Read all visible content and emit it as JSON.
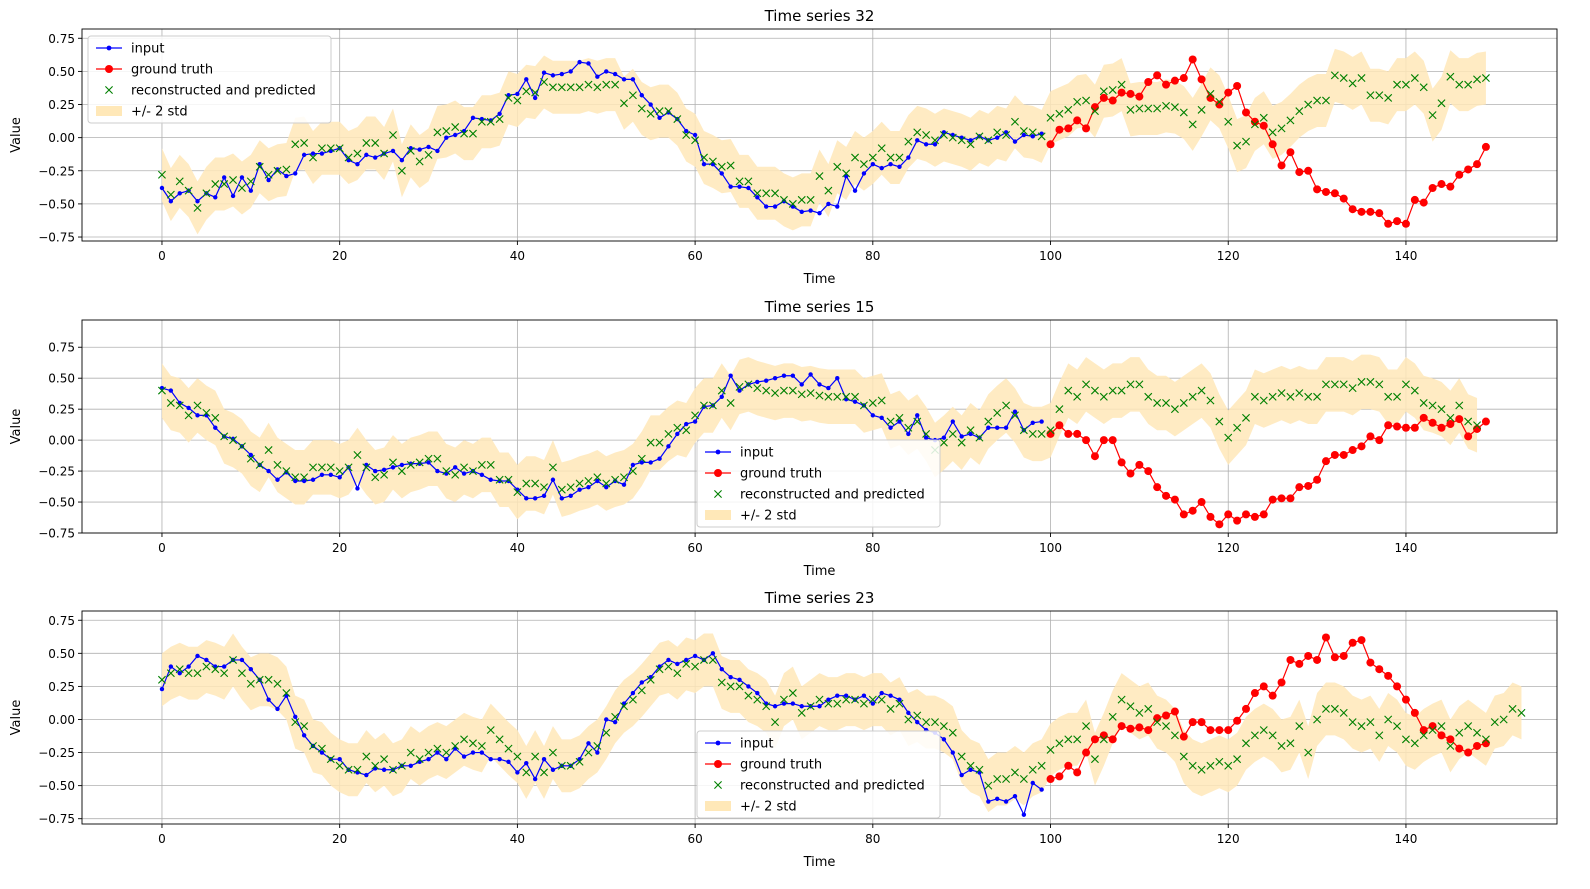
{
  "legend_labels": {
    "input": "input",
    "ground_truth": "ground truth",
    "predicted": "reconstructed and predicted",
    "band": "+/- 2 std"
  },
  "colors": {
    "input": "#0000ff",
    "ground_truth": "#ff0000",
    "predicted": "#008000",
    "band": "#ffe8b8",
    "grid": "#b0b0b0",
    "axes": "#000000"
  },
  "chart_data": [
    {
      "type": "line",
      "title": "Time series 32",
      "xlabel": "Time",
      "ylabel": "Value",
      "xlim": [
        -9,
        157
      ],
      "ylim": [
        -0.78,
        0.82
      ],
      "xticks": [
        0,
        20,
        40,
        60,
        80,
        100,
        120,
        140
      ],
      "yticks": [
        -0.75,
        -0.5,
        -0.25,
        0.0,
        0.25,
        0.5,
        0.75
      ],
      "ytick_labels": [
        "−0.75",
        "−0.50",
        "−0.25",
        "0.00",
        "0.25",
        "0.50",
        "0.75"
      ],
      "grid": true,
      "legend_position": "upper-left",
      "input": {
        "x_start": 0,
        "values": [
          -0.38,
          -0.48,
          -0.42,
          -0.4,
          -0.48,
          -0.42,
          -0.45,
          -0.3,
          -0.44,
          -0.3,
          -0.4,
          -0.2,
          -0.32,
          -0.24,
          -0.29,
          -0.27,
          -0.13,
          -0.12,
          -0.12,
          -0.1,
          -0.08,
          -0.17,
          -0.2,
          -0.13,
          -0.15,
          -0.12,
          -0.1,
          -0.17,
          -0.08,
          -0.09,
          -0.07,
          -0.1,
          0.0,
          0.02,
          0.05,
          0.15,
          0.14,
          0.13,
          0.18,
          0.32,
          0.33,
          0.44,
          0.3,
          0.49,
          0.47,
          0.48,
          0.5,
          0.57,
          0.56,
          0.46,
          0.5,
          0.48,
          0.44,
          0.44,
          0.32,
          0.25,
          0.15,
          0.19,
          0.14,
          0.05,
          0.02,
          -0.2,
          -0.2,
          -0.27,
          -0.37,
          -0.37,
          -0.38,
          -0.45,
          -0.52,
          -0.52,
          -0.48,
          -0.52,
          -0.56,
          -0.55,
          -0.57,
          -0.5,
          -0.52,
          -0.29,
          -0.4,
          -0.27,
          -0.2,
          -0.23,
          -0.2,
          -0.22,
          -0.15,
          -0.02,
          -0.05,
          -0.05,
          0.04,
          0.02,
          0.0,
          -0.02,
          0.01,
          -0.02,
          0.0,
          0.04,
          -0.03,
          0.02,
          0.01,
          0.03
        ]
      },
      "ground_truth": {
        "x_start": 100,
        "values": [
          -0.05,
          0.06,
          0.07,
          0.13,
          0.07,
          0.23,
          0.3,
          0.28,
          0.34,
          0.33,
          0.31,
          0.42,
          0.47,
          0.4,
          0.43,
          0.45,
          0.59,
          0.44,
          0.3,
          0.25,
          0.34,
          0.39,
          0.19,
          0.12,
          0.09,
          -0.05,
          -0.21,
          -0.11,
          -0.26,
          -0.25,
          -0.39,
          -0.41,
          -0.42,
          -0.46,
          -0.54,
          -0.56,
          -0.56,
          -0.57,
          -0.65,
          -0.63,
          -0.65,
          -0.47,
          -0.49,
          -0.38,
          -0.35,
          -0.37,
          -0.28,
          -0.24,
          -0.2,
          -0.07
        ]
      },
      "predicted": {
        "x_start": 0,
        "values": [
          -0.28,
          -0.43,
          -0.33,
          -0.4,
          -0.53,
          -0.42,
          -0.35,
          -0.35,
          -0.32,
          -0.38,
          -0.33,
          -0.22,
          -0.28,
          -0.25,
          -0.24,
          -0.05,
          -0.04,
          -0.15,
          -0.08,
          -0.08,
          -0.08,
          -0.15,
          -0.12,
          -0.04,
          -0.04,
          -0.12,
          0.02,
          -0.25,
          -0.1,
          -0.18,
          -0.13,
          0.04,
          0.05,
          0.08,
          0.03,
          0.03,
          0.12,
          0.12,
          0.14,
          0.3,
          0.28,
          0.35,
          0.34,
          0.42,
          0.38,
          0.38,
          0.38,
          0.38,
          0.4,
          0.38,
          0.4,
          0.4,
          0.26,
          0.32,
          0.22,
          0.18,
          0.2,
          0.2,
          0.14,
          0.02,
          -0.02,
          -0.15,
          -0.18,
          -0.22,
          -0.21,
          -0.33,
          -0.33,
          -0.42,
          -0.42,
          -0.42,
          -0.47,
          -0.5,
          -0.47,
          -0.47,
          -0.29,
          -0.4,
          -0.22,
          -0.27,
          -0.15,
          -0.2,
          -0.15,
          -0.08,
          -0.15,
          -0.15,
          -0.03,
          0.04,
          0.02,
          -0.02,
          0.02,
          0.0,
          -0.02,
          -0.05,
          0.01,
          -0.02,
          0.04,
          0.02,
          0.12,
          0.05,
          0.04,
          0.01,
          0.15,
          0.18,
          0.21,
          0.27,
          0.28,
          0.2,
          0.35,
          0.36,
          0.4,
          0.21,
          0.22,
          0.22,
          0.22,
          0.24,
          0.23,
          0.19,
          0.1,
          0.21,
          0.33,
          0.27,
          0.12,
          -0.06,
          -0.03,
          0.1,
          0.15,
          0.04,
          0.07,
          0.13,
          0.2,
          0.25,
          0.28,
          0.28,
          0.47,
          0.45,
          0.41,
          0.45,
          0.32,
          0.32,
          0.3,
          0.4,
          0.4,
          0.45,
          0.38,
          0.17,
          0.26,
          0.46,
          0.4,
          0.4,
          0.44,
          0.45
        ]
      },
      "band_half_width": 0.2
    },
    {
      "type": "line",
      "title": "Time series 15",
      "xlabel": "Time",
      "ylabel": "Value",
      "xlim": [
        -9,
        157
      ],
      "ylim": [
        -0.75,
        0.97
      ],
      "xticks": [
        0,
        20,
        40,
        60,
        80,
        100,
        120,
        140
      ],
      "yticks": [
        -0.75,
        -0.5,
        -0.25,
        0.0,
        0.25,
        0.5,
        0.75
      ],
      "ytick_labels": [
        "−0.75",
        "−0.50",
        "−0.25",
        "0.00",
        "0.25",
        "0.50",
        "0.75"
      ],
      "grid": true,
      "legend_position": "lower-center",
      "input": {
        "x_start": 0,
        "values": [
          0.42,
          0.4,
          0.3,
          0.26,
          0.2,
          0.2,
          0.1,
          0.03,
          0.01,
          -0.05,
          -0.12,
          -0.2,
          -0.25,
          -0.32,
          -0.26,
          -0.33,
          -0.33,
          -0.32,
          -0.28,
          -0.28,
          -0.3,
          -0.22,
          -0.39,
          -0.2,
          -0.25,
          -0.24,
          -0.22,
          -0.2,
          -0.19,
          -0.19,
          -0.18,
          -0.25,
          -0.27,
          -0.22,
          -0.27,
          -0.25,
          -0.28,
          -0.32,
          -0.33,
          -0.33,
          -0.4,
          -0.47,
          -0.47,
          -0.45,
          -0.32,
          -0.47,
          -0.45,
          -0.4,
          -0.38,
          -0.33,
          -0.38,
          -0.33,
          -0.36,
          -0.2,
          -0.18,
          -0.18,
          -0.15,
          -0.05,
          0.05,
          0.13,
          0.15,
          0.27,
          0.28,
          0.35,
          0.52,
          0.4,
          0.45,
          0.47,
          0.48,
          0.5,
          0.52,
          0.52,
          0.45,
          0.53,
          0.45,
          0.42,
          0.5,
          0.33,
          0.31,
          0.28,
          0.2,
          0.18,
          0.1,
          0.15,
          0.05,
          0.2,
          0.02,
          0.0,
          0.02,
          0.15,
          0.03,
          0.05,
          0.02,
          0.1,
          0.1,
          0.1,
          0.23,
          0.08,
          0.14,
          0.15
        ]
      },
      "ground_truth": {
        "x_start": 100,
        "values": [
          0.05,
          0.12,
          0.05,
          0.05,
          0.0,
          -0.13,
          0.0,
          0.0,
          -0.18,
          -0.27,
          -0.2,
          -0.25,
          -0.38,
          -0.45,
          -0.48,
          -0.6,
          -0.57,
          -0.5,
          -0.62,
          -0.68,
          -0.6,
          -0.65,
          -0.6,
          -0.62,
          -0.6,
          -0.48,
          -0.47,
          -0.47,
          -0.38,
          -0.37,
          -0.32,
          -0.17,
          -0.12,
          -0.12,
          -0.08,
          -0.05,
          0.03,
          0.0,
          0.12,
          0.11,
          0.1,
          0.1,
          0.18,
          0.14,
          0.1,
          0.13,
          0.17,
          0.03,
          0.09,
          0.15
        ]
      },
      "predicted": {
        "x_start": 0,
        "values": [
          0.4,
          0.3,
          0.28,
          0.2,
          0.28,
          0.22,
          0.18,
          0.03,
          0.0,
          -0.05,
          -0.15,
          -0.2,
          -0.08,
          -0.2,
          -0.25,
          -0.3,
          -0.3,
          -0.22,
          -0.22,
          -0.22,
          -0.25,
          -0.22,
          -0.12,
          -0.22,
          -0.3,
          -0.28,
          -0.18,
          -0.25,
          -0.2,
          -0.18,
          -0.15,
          -0.15,
          -0.25,
          -0.28,
          -0.22,
          -0.25,
          -0.2,
          -0.2,
          -0.32,
          -0.32,
          -0.42,
          -0.35,
          -0.35,
          -0.38,
          -0.22,
          -0.4,
          -0.38,
          -0.35,
          -0.33,
          -0.3,
          -0.35,
          -0.32,
          -0.3,
          -0.25,
          -0.15,
          -0.02,
          -0.02,
          0.05,
          0.1,
          0.08,
          0.2,
          0.28,
          0.28,
          0.4,
          0.3,
          0.43,
          0.45,
          0.42,
          0.4,
          0.38,
          0.4,
          0.4,
          0.37,
          0.38,
          0.36,
          0.35,
          0.35,
          0.35,
          0.35,
          0.28,
          0.3,
          0.32,
          0.15,
          0.18,
          0.1,
          0.15,
          0.05,
          -0.08,
          -0.02,
          0.05,
          -0.02,
          0.08,
          0.02,
          0.15,
          0.22,
          0.28,
          0.2,
          0.08,
          0.05,
          0.05,
          0.08,
          0.25,
          0.4,
          0.35,
          0.45,
          0.4,
          0.35,
          0.4,
          0.4,
          0.45,
          0.45,
          0.35,
          0.3,
          0.3,
          0.25,
          0.3,
          0.35,
          0.4,
          0.32,
          0.15,
          0.02,
          0.1,
          0.18,
          0.35,
          0.32,
          0.35,
          0.38,
          0.35,
          0.38,
          0.35,
          0.35,
          0.45,
          0.45,
          0.45,
          0.42,
          0.47,
          0.47,
          0.45,
          0.35,
          0.35,
          0.45,
          0.4,
          0.3,
          0.28,
          0.25,
          0.18,
          0.28,
          0.15,
          0.12
        ]
      },
      "band_half_width": 0.22,
      "legend_series_prefix": "ts15"
    },
    {
      "type": "line",
      "title": "Time series 23",
      "xlabel": "Time",
      "ylabel": "Value",
      "xlim": [
        -9,
        157
      ],
      "ylim": [
        -0.79,
        0.82
      ],
      "xticks": [
        0,
        20,
        40,
        60,
        80,
        100,
        120,
        140
      ],
      "yticks": [
        -0.75,
        -0.5,
        -0.25,
        0.0,
        0.25,
        0.5,
        0.75
      ],
      "ytick_labels": [
        "−0.75",
        "−0.50",
        "−0.25",
        "0.00",
        "0.25",
        "0.50",
        "0.75"
      ],
      "grid": true,
      "legend_position": "lower-center",
      "input": {
        "x_start": 0,
        "values": [
          0.23,
          0.4,
          0.35,
          0.4,
          0.48,
          0.45,
          0.4,
          0.4,
          0.45,
          0.45,
          0.38,
          0.3,
          0.15,
          0.08,
          0.18,
          0.02,
          -0.12,
          -0.2,
          -0.25,
          -0.3,
          -0.3,
          -0.38,
          -0.4,
          -0.42,
          -0.37,
          -0.38,
          -0.38,
          -0.35,
          -0.35,
          -0.32,
          -0.3,
          -0.25,
          -0.3,
          -0.22,
          -0.28,
          -0.25,
          -0.25,
          -0.3,
          -0.3,
          -0.32,
          -0.4,
          -0.33,
          -0.45,
          -0.3,
          -0.38,
          -0.35,
          -0.35,
          -0.3,
          -0.18,
          -0.25,
          0.0,
          -0.02,
          0.12,
          0.2,
          0.28,
          0.32,
          0.4,
          0.45,
          0.42,
          0.45,
          0.48,
          0.45,
          0.5,
          0.38,
          0.32,
          0.3,
          0.25,
          0.2,
          0.12,
          0.1,
          0.12,
          0.12,
          0.1,
          0.1,
          0.1,
          0.15,
          0.18,
          0.18,
          0.15,
          0.18,
          0.12,
          0.2,
          0.18,
          0.15,
          0.05,
          -0.02,
          -0.08,
          -0.1,
          -0.15,
          -0.25,
          -0.42,
          -0.38,
          -0.4,
          -0.62,
          -0.6,
          -0.62,
          -0.58,
          -0.72,
          -0.48,
          -0.53
        ]
      },
      "ground_truth": {
        "x_start": 100,
        "values": [
          -0.45,
          -0.43,
          -0.35,
          -0.4,
          -0.25,
          -0.15,
          -0.12,
          -0.15,
          -0.05,
          -0.07,
          -0.06,
          -0.08,
          0.01,
          0.03,
          0.06,
          -0.13,
          -0.02,
          -0.02,
          -0.08,
          -0.08,
          -0.08,
          -0.01,
          0.08,
          0.2,
          0.25,
          0.18,
          0.28,
          0.45,
          0.42,
          0.48,
          0.45,
          0.62,
          0.47,
          0.48,
          0.58,
          0.6,
          0.43,
          0.38,
          0.33,
          0.25,
          0.15,
          0.05,
          -0.08,
          -0.05,
          -0.12,
          -0.15,
          -0.22,
          -0.25,
          -0.2,
          -0.18
        ]
      },
      "predicted": {
        "x_start": 0,
        "values": [
          0.3,
          0.35,
          0.38,
          0.35,
          0.35,
          0.4,
          0.38,
          0.35,
          0.45,
          0.35,
          0.27,
          0.3,
          0.3,
          0.27,
          0.2,
          -0.02,
          -0.05,
          -0.2,
          -0.22,
          -0.3,
          -0.35,
          -0.38,
          -0.38,
          -0.28,
          -0.35,
          -0.3,
          -0.38,
          -0.35,
          -0.25,
          -0.3,
          -0.25,
          -0.22,
          -0.25,
          -0.2,
          -0.15,
          -0.18,
          -0.2,
          -0.08,
          -0.15,
          -0.22,
          -0.28,
          -0.4,
          -0.28,
          -0.4,
          -0.25,
          -0.35,
          -0.35,
          -0.32,
          -0.25,
          -0.2,
          -0.1,
          0.02,
          0.1,
          0.15,
          0.22,
          0.3,
          0.38,
          0.4,
          0.35,
          0.42,
          0.4,
          0.45,
          0.45,
          0.28,
          0.25,
          0.25,
          0.18,
          0.15,
          0.1,
          -0.02,
          0.15,
          0.2,
          0.05,
          0.1,
          0.15,
          0.12,
          0.12,
          0.15,
          0.15,
          0.12,
          0.15,
          0.15,
          0.08,
          0.12,
          0.0,
          0.03,
          -0.02,
          -0.02,
          -0.05,
          -0.1,
          -0.28,
          -0.35,
          -0.38,
          -0.5,
          -0.45,
          -0.45,
          -0.4,
          -0.45,
          -0.38,
          -0.35,
          -0.23,
          -0.18,
          -0.15,
          -0.15,
          -0.05,
          -0.3,
          -0.15,
          0.02,
          0.15,
          0.1,
          0.05,
          0.08,
          -0.02,
          -0.05,
          -0.12,
          -0.28,
          -0.35,
          -0.38,
          -0.35,
          -0.32,
          -0.35,
          -0.3,
          -0.18,
          -0.12,
          -0.08,
          -0.12,
          -0.2,
          -0.18,
          -0.05,
          -0.25,
          0.0,
          0.08,
          0.08,
          0.05,
          -0.02,
          -0.05,
          -0.02,
          -0.12,
          0.0,
          -0.05,
          -0.15,
          -0.18,
          -0.12,
          -0.08,
          -0.05,
          -0.2,
          -0.1,
          -0.05,
          -0.1,
          -0.15,
          -0.02,
          0.0,
          0.08,
          0.05
        ]
      },
      "band_half_width": 0.2
    }
  ]
}
